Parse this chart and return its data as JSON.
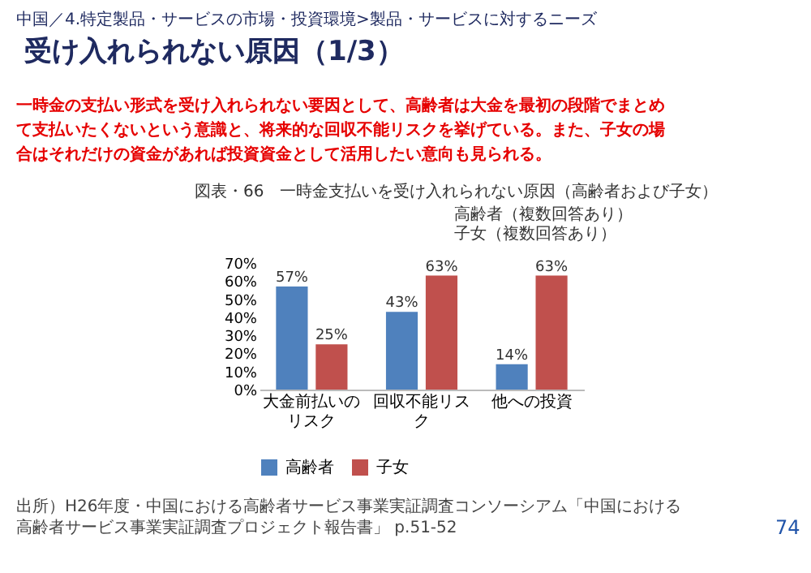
{
  "chart_data": {
    "type": "bar",
    "title": "受け入れられない原因（1/3）",
    "subtitle": "一時金の支払い形式を受け入れられない要因として、高齢者は大金を最初の段階でまとめて支払いたくないという意識と、将来的な回収不能リスクを挙げている。また、子女の場合はそれだけの資金があれば投資資金として活用したい意向も見られる。",
    "annotations": [
      "中国／4.特定製品・サービスの市場・投資環境>製品・サービスに対するニーズ",
      "図表・66　一時金支払いを受け入れられない原因（高齢者および子女）",
      "高齢者（複数回答あり）",
      "子女（複数回答あり）",
      "出所）H26年度・中国における高齢者サービス事業実証調査コンソーシアム「中国における高齢者サービス事業実証調査プロジェクト報告書」 p.51-52",
      "74"
    ],
    "categories": [
      "大金前払いのリスク",
      "回収不能リスク",
      "他への投資"
    ],
    "series": [
      {
        "name": "高齢者",
        "color": "#4f81bd",
        "values": [
          57,
          43,
          14
        ]
      },
      {
        "name": "子女",
        "color": "#c0504d",
        "values": [
          25,
          63,
          63
        ]
      }
    ],
    "ylim": [
      0,
      70
    ],
    "yticks": [
      {
        "value": 0,
        "label": "0%"
      },
      {
        "value": 10,
        "label": "10%"
      },
      {
        "value": 20,
        "label": "20%"
      },
      {
        "value": 30,
        "label": "30%"
      },
      {
        "value": 40,
        "label": "40%"
      },
      {
        "value": 50,
        "label": "50%"
      },
      {
        "value": 60,
        "label": "60%"
      },
      {
        "value": 70,
        "label": "70%"
      }
    ],
    "value_labels": [
      [
        "57%",
        "43%",
        "14%"
      ],
      [
        "25%",
        "63%",
        "63%"
      ]
    ],
    "legend": "bottom",
    "grid": false
  }
}
